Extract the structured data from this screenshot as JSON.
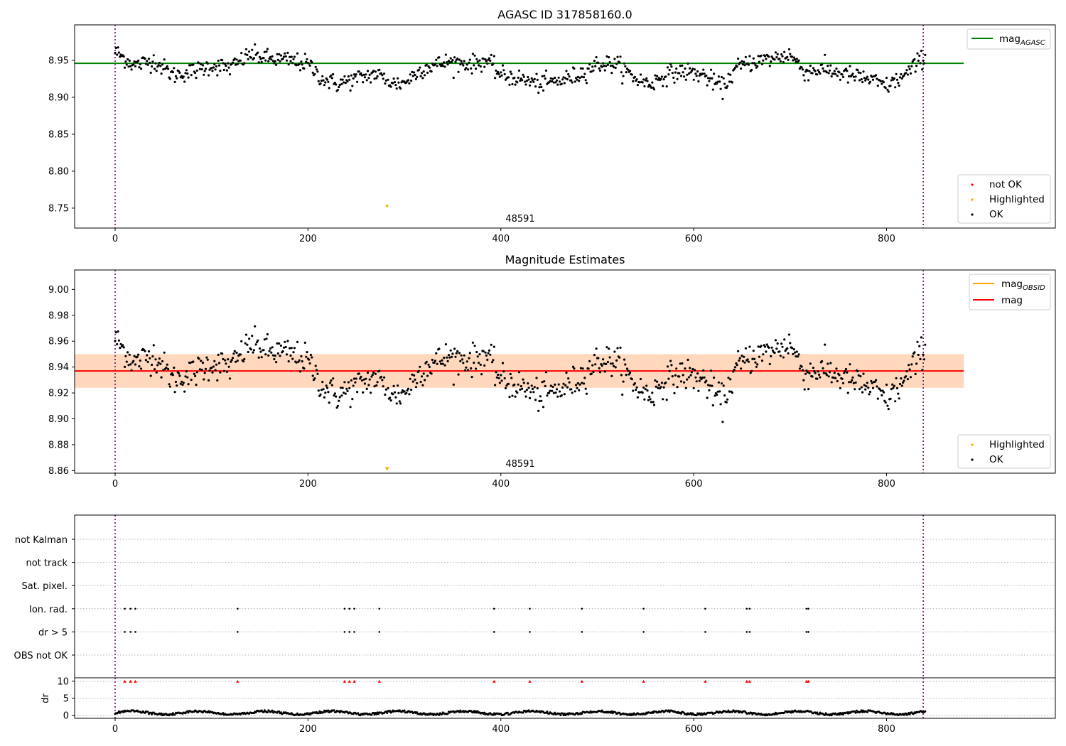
{
  "chart_data": [
    {
      "type": "scatter",
      "title": "AGASC ID 317858160.0",
      "xlim": [
        -42,
        975
      ],
      "ylim": [
        8.723,
        8.998
      ],
      "xticks": [
        0,
        200,
        400,
        600,
        800
      ],
      "yticks": [
        8.75,
        8.8,
        8.85,
        8.9,
        8.95
      ],
      "ytick_labels": [
        "8.75",
        "8.80",
        "8.85",
        "8.90",
        "8.95"
      ],
      "obs_boundaries": [
        0,
        838
      ],
      "reference_line": {
        "label": "mag",
        "label_sub": "AGASC",
        "value": 8.946,
        "x_range": [
          -42,
          880
        ],
        "color": "#008000"
      },
      "legend_lines_placement": "top-right",
      "legend_points_placement": "lower-right",
      "legend_points": [
        {
          "label": "not OK",
          "color": "#ff0000"
        },
        {
          "label": "Highlighted",
          "color": "#ffa500"
        },
        {
          "label": "OK",
          "color": "#000000"
        }
      ],
      "highlighted_points": [
        {
          "x": 282,
          "y": 8.753
        }
      ],
      "annotation": {
        "text": "48591",
        "x": 419,
        "y": 8.731
      },
      "ok_series": {
        "baseline": 8.935,
        "spread": 0.006,
        "segments": [
          [
            0,
            8.962
          ],
          [
            20,
            8.943
          ],
          [
            40,
            8.95
          ],
          [
            60,
            8.93
          ],
          [
            80,
            8.935
          ],
          [
            100,
            8.943
          ],
          [
            120,
            8.94
          ],
          [
            140,
            8.958
          ],
          [
            160,
            8.952
          ],
          [
            180,
            8.95
          ],
          [
            200,
            8.945
          ],
          [
            215,
            8.925
          ],
          [
            230,
            8.918
          ],
          [
            250,
            8.925
          ],
          [
            270,
            8.932
          ],
          [
            290,
            8.918
          ],
          [
            300,
            8.92
          ],
          [
            320,
            8.94
          ],
          [
            345,
            8.948
          ],
          [
            370,
            8.945
          ],
          [
            385,
            8.95
          ],
          [
            400,
            8.93
          ],
          [
            420,
            8.925
          ],
          [
            440,
            8.918
          ],
          [
            460,
            8.922
          ],
          [
            480,
            8.93
          ],
          [
            500,
            8.945
          ],
          [
            520,
            8.945
          ],
          [
            540,
            8.925
          ],
          [
            555,
            8.918
          ],
          [
            570,
            8.93
          ],
          [
            590,
            8.935
          ],
          [
            610,
            8.93
          ],
          [
            630,
            8.913
          ],
          [
            645,
            8.94
          ],
          [
            660,
            8.948
          ],
          [
            680,
            8.952
          ],
          [
            700,
            8.958
          ],
          [
            715,
            8.935
          ],
          [
            735,
            8.938
          ],
          [
            760,
            8.93
          ],
          [
            780,
            8.925
          ],
          [
            800,
            8.915
          ],
          [
            820,
            8.93
          ],
          [
            838,
            8.955
          ]
        ]
      }
    },
    {
      "type": "scatter",
      "title": "Magnitude Estimates",
      "xlim": [
        -42,
        975
      ],
      "ylim": [
        8.858,
        9.015
      ],
      "xticks": [
        0,
        200,
        400,
        600,
        800
      ],
      "yticks": [
        8.86,
        8.88,
        8.9,
        8.92,
        8.94,
        8.96,
        8.98,
        9.0
      ],
      "ytick_labels": [
        "8.86",
        "8.88",
        "8.90",
        "8.92",
        "8.94",
        "8.96",
        "8.98",
        "9.00"
      ],
      "obs_boundaries": [
        0,
        838
      ],
      "mag_line": {
        "label": "mag",
        "value": 8.937,
        "x_range": [
          -42,
          880
        ],
        "color": "#ff0000"
      },
      "mag_obsid_line": {
        "label": "mag",
        "label_sub": "OBSID",
        "value": 8.937,
        "x_range": [
          -42,
          880
        ],
        "color": "#ffa500"
      },
      "band": {
        "low": 8.924,
        "high": 8.95,
        "x_range": [
          -42,
          880
        ]
      },
      "legend_lines_placement": "top-right",
      "legend_points_placement": "lower-right",
      "legend_points": [
        {
          "label": "Highlighted",
          "color": "#ffa500"
        },
        {
          "label": "OK",
          "color": "#000000"
        }
      ],
      "highlighted_points": [
        {
          "x": 282,
          "y": 8.861
        }
      ],
      "annotation": {
        "text": "48591",
        "x": 419,
        "y": 8.863
      }
    },
    {
      "type": "scatter",
      "title": "",
      "xlim": [
        -42,
        975
      ],
      "xticks": [
        0,
        200,
        400,
        600,
        800
      ],
      "obs_boundaries": [
        0,
        838
      ],
      "flag_rows": [
        "not Kalman",
        "not track",
        "Sat. pixel.",
        "Ion. rad.",
        "dr > 5",
        "OBS not OK"
      ],
      "flag_points": {
        "Ion. rad.": [
          10,
          16,
          21,
          127,
          238,
          243,
          248,
          274,
          393,
          430,
          484,
          548,
          612,
          655,
          658,
          717,
          719
        ],
        "dr > 5": [
          10,
          16,
          21,
          127,
          238,
          243,
          248,
          274,
          393,
          430,
          484,
          548,
          612,
          655,
          658,
          717,
          719
        ]
      },
      "dr": {
        "ylabel": "dr",
        "ylim": [
          -0.8,
          11
        ],
        "yticks": [
          0,
          5,
          10
        ],
        "ytick_labels": [
          "0",
          "5",
          "10"
        ],
        "clipped_markers_at": 10,
        "clipped_x": [
          10,
          16,
          21,
          127,
          238,
          243,
          248,
          274,
          393,
          430,
          484,
          548,
          612,
          655,
          658,
          717,
          719
        ],
        "typical_value": 0.8
      }
    }
  ]
}
